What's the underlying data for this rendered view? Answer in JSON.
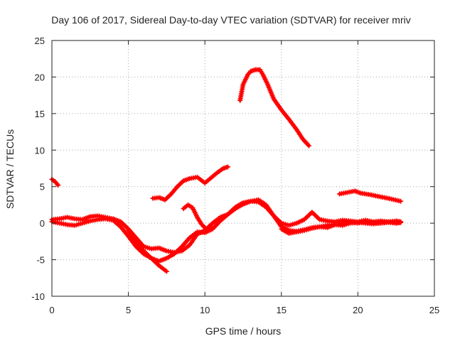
{
  "chart_data": {
    "type": "scatter",
    "title": "Day 106 of 2017, Sidereal Day-to-day VTEC variation (SDTVAR) for receiver mriv",
    "xlabel": "GPS time / hours",
    "ylabel": "SDTVAR / TECUs",
    "xlim": [
      0,
      25
    ],
    "ylim": [
      -10,
      25
    ],
    "xticks": [
      0,
      5,
      10,
      15,
      20,
      25
    ],
    "yticks": [
      -10,
      -5,
      0,
      5,
      10,
      15,
      20,
      25
    ],
    "xtick_labels": [
      "0",
      "5",
      "10",
      "15",
      "20",
      "25"
    ],
    "ytick_labels": [
      "-10",
      "-5",
      "0",
      "5",
      "10",
      "15",
      "20",
      "25"
    ],
    "grid": true,
    "marker": "+",
    "color": "#ff0000",
    "series": [
      {
        "name": "s1",
        "x": [
          0.0,
          0.2,
          0.4
        ],
        "y": [
          6.0,
          5.7,
          5.2
        ]
      },
      {
        "name": "s2",
        "x": [
          12.3,
          12.5,
          12.8,
          13.0,
          13.3,
          13.6,
          13.8,
          14.1,
          14.5,
          15.0,
          15.5,
          16.0,
          16.4,
          16.8
        ],
        "y": [
          16.8,
          19.0,
          20.3,
          20.8,
          21.0,
          21.0,
          20.3,
          19.0,
          17.0,
          15.5,
          14.2,
          12.8,
          11.5,
          10.6
        ]
      },
      {
        "name": "s3",
        "x": [
          6.6,
          7.0,
          7.4,
          7.8,
          8.2,
          8.6,
          9.0,
          9.5,
          10.0,
          10.4,
          10.8,
          11.2,
          11.5
        ],
        "y": [
          3.4,
          3.5,
          3.2,
          4.0,
          5.0,
          5.8,
          6.1,
          6.3,
          5.5,
          6.2,
          6.9,
          7.5,
          7.7
        ]
      },
      {
        "name": "s4",
        "x": [
          18.8,
          19.3,
          19.8,
          20.2,
          20.8,
          21.5,
          22.2,
          22.8
        ],
        "y": [
          4.0,
          4.2,
          4.4,
          4.1,
          3.9,
          3.6,
          3.3,
          3.0
        ]
      },
      {
        "name": "s5",
        "x": [
          0.0,
          0.5,
          1.0,
          1.5,
          2.0,
          2.5,
          3.0,
          3.5,
          4.0,
          4.5,
          5.0,
          5.5,
          6.0,
          6.5,
          7.0,
          7.5,
          8.0,
          8.5,
          9.0,
          9.5,
          10.0,
          10.5,
          11.0,
          11.5,
          12.0,
          12.5,
          13.0,
          13.5,
          14.0,
          14.5,
          15.0,
          15.5,
          16.0,
          16.5,
          17.0,
          17.5,
          18.0,
          18.5,
          19.0,
          19.5,
          20.0,
          20.5,
          21.0,
          21.5,
          22.0,
          22.5,
          22.8
        ],
        "y": [
          0.5,
          0.6,
          0.8,
          0.6,
          0.5,
          0.9,
          1.0,
          0.8,
          0.6,
          0.2,
          -0.8,
          -2.0,
          -3.2,
          -3.5,
          -3.4,
          -3.8,
          -4.0,
          -3.8,
          -3.0,
          -1.5,
          -1.0,
          0.0,
          0.8,
          1.2,
          2.0,
          2.6,
          3.0,
          3.2,
          2.5,
          1.0,
          0.0,
          -0.3,
          0.0,
          0.5,
          1.5,
          0.5,
          0.3,
          0.2,
          0.4,
          0.3,
          0.2,
          0.4,
          0.2,
          0.3,
          0.2,
          0.3,
          0.2
        ]
      },
      {
        "name": "s6",
        "x": [
          0.0,
          0.5,
          1.0,
          1.5,
          2.0,
          2.5,
          3.0,
          3.5,
          4.0,
          4.5,
          5.0,
          5.5,
          6.0,
          6.5,
          7.0,
          7.5,
          8.0,
          8.5,
          9.0,
          9.5,
          10.0,
          10.5,
          11.0,
          11.5,
          12.0,
          12.5,
          13.0,
          13.5,
          14.0,
          14.5,
          15.0,
          15.5,
          16.0,
          16.5,
          17.0,
          17.5,
          18.0,
          18.5,
          19.0,
          19.5,
          20.0,
          20.5,
          21.0,
          21.5,
          22.0,
          22.5,
          22.8
        ],
        "y": [
          0.2,
          0.0,
          -0.2,
          -0.3,
          0.0,
          0.3,
          0.5,
          0.6,
          0.4,
          -0.5,
          -1.8,
          -3.2,
          -4.2,
          -4.8,
          -5.2,
          -4.8,
          -4.2,
          -3.2,
          -2.0,
          -1.2,
          -1.3,
          -0.8,
          0.3,
          1.2,
          2.2,
          2.8,
          3.0,
          2.9,
          2.2,
          1.0,
          -0.5,
          -1.0,
          -1.1,
          -0.9,
          -0.6,
          -0.5,
          -0.3,
          -0.2,
          0.0,
          0.1,
          0.0,
          0.2,
          0.1,
          0.0,
          0.1,
          0.0,
          0.1
        ]
      },
      {
        "name": "s7",
        "x": [
          5.0,
          5.5,
          6.0,
          6.5,
          7.0,
          7.5
        ],
        "y": [
          -1.0,
          -2.6,
          -3.8,
          -4.8,
          -5.8,
          -6.6
        ]
      },
      {
        "name": "s8",
        "x": [
          8.6,
          8.9,
          9.2,
          9.5,
          9.8,
          10.1,
          10.4
        ],
        "y": [
          2.0,
          2.5,
          2.1,
          0.8,
          -0.2,
          -0.8,
          -0.5
        ]
      },
      {
        "name": "s9",
        "x": [
          15.0,
          15.5,
          16.0,
          16.5,
          17.0,
          17.5,
          18.0,
          18.5,
          19.0,
          19.5,
          20.0,
          20.5,
          21.0,
          21.5,
          22.0,
          22.5,
          22.8
        ],
        "y": [
          -0.8,
          -1.4,
          -1.2,
          -1.0,
          -0.7,
          -0.5,
          -0.6,
          -0.2,
          -0.3,
          0.0,
          0.1,
          0.0,
          -0.1,
          0.0,
          0.2,
          0.0,
          0.1
        ]
      }
    ]
  }
}
